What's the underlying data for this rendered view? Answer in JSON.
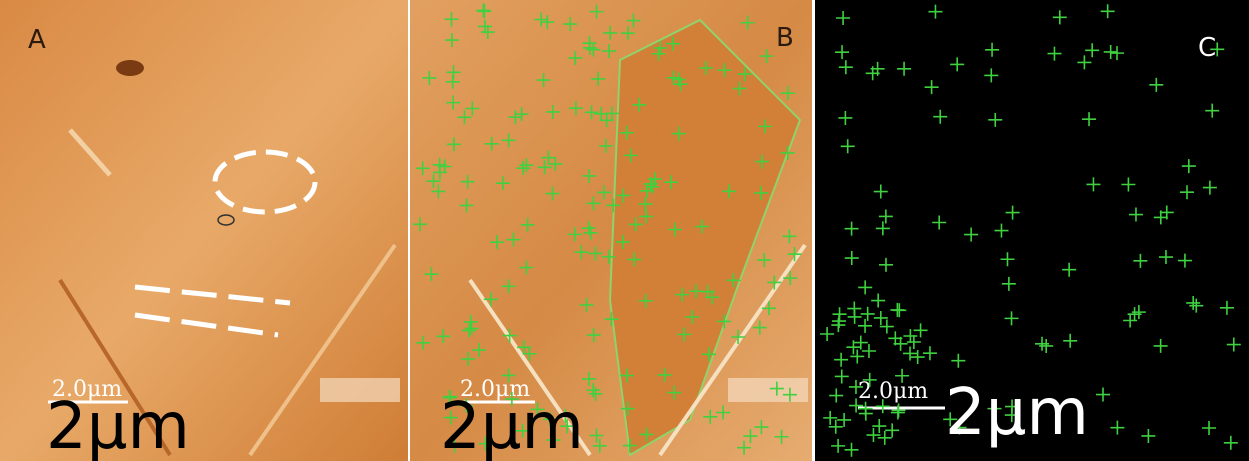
{
  "panels": [
    {
      "label": "A",
      "scale_bar_label": "2.0μm",
      "scale_text": "2μm"
    },
    {
      "label": "B",
      "scale_bar_label": "2.0μm",
      "scale_text": "2μm"
    },
    {
      "label": "C",
      "scale_bar_label": "2.0μm",
      "scale_text": "2μm"
    }
  ]
}
